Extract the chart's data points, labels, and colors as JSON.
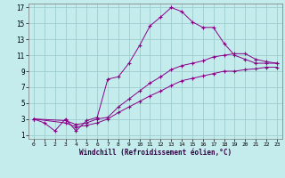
{
  "xlabel": "Windchill (Refroidissement éolien,°C)",
  "bg_color": "#c5eced",
  "line_color": "#880088",
  "grid_color": "#9ecece",
  "xlim": [
    -0.5,
    23.5
  ],
  "ylim": [
    0.5,
    17.5
  ],
  "yticks": [
    1,
    3,
    5,
    7,
    9,
    11,
    13,
    15,
    17
  ],
  "xticks": [
    0,
    1,
    2,
    3,
    4,
    5,
    6,
    7,
    8,
    9,
    10,
    11,
    12,
    13,
    14,
    15,
    16,
    17,
    18,
    19,
    20,
    21,
    22,
    23
  ],
  "line1_x": [
    0,
    1,
    2,
    3,
    4,
    5,
    6,
    7,
    8,
    9,
    10,
    11,
    12,
    13,
    14,
    15,
    16,
    17,
    18,
    19,
    20,
    21,
    22,
    23
  ],
  "line1_y": [
    3.0,
    2.5,
    1.5,
    3.0,
    1.5,
    2.8,
    3.2,
    8.0,
    8.3,
    10.0,
    12.2,
    14.7,
    15.8,
    17.0,
    16.5,
    15.2,
    14.5,
    14.5,
    12.5,
    11.0,
    10.5,
    10.0,
    10.0,
    10.0
  ],
  "line2_x": [
    0,
    3,
    4,
    5,
    6,
    7,
    8,
    9,
    10,
    11,
    12,
    13,
    14,
    15,
    16,
    17,
    18,
    19,
    20,
    21,
    22,
    23
  ],
  "line2_y": [
    3.0,
    2.8,
    2.3,
    2.5,
    3.0,
    3.2,
    4.5,
    5.5,
    6.5,
    7.5,
    8.3,
    9.2,
    9.7,
    10.0,
    10.3,
    10.8,
    11.0,
    11.2,
    11.2,
    10.5,
    10.2,
    10.0
  ],
  "line3_x": [
    0,
    3,
    4,
    5,
    6,
    7,
    8,
    9,
    10,
    11,
    12,
    13,
    14,
    15,
    16,
    17,
    18,
    19,
    20,
    21,
    22,
    23
  ],
  "line3_y": [
    3.0,
    2.5,
    2.0,
    2.2,
    2.5,
    3.0,
    3.8,
    4.5,
    5.2,
    5.9,
    6.5,
    7.2,
    7.8,
    8.1,
    8.4,
    8.7,
    9.0,
    9.0,
    9.2,
    9.3,
    9.5,
    9.5
  ]
}
